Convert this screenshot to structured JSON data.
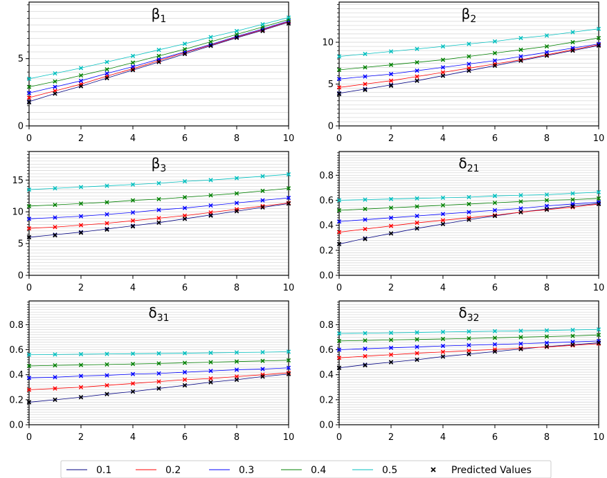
{
  "chart_data": {
    "type": "line",
    "x": [
      0,
      1,
      2,
      3,
      4,
      5,
      6,
      7,
      8,
      9,
      10
    ],
    "grid": "horizontal minor gridlines",
    "legend": {
      "placement": "bottom-center",
      "entries": [
        "0.1",
        "0.2",
        "0.3",
        "0.4",
        "0.5",
        "Predicted Values"
      ]
    },
    "colors": [
      "#000080",
      "#ff0000",
      "#0000ff",
      "#008000",
      "#00bfbf"
    ],
    "predicted_color": "#000000",
    "panels": [
      {
        "title_main": "β",
        "title_sub": "1",
        "xlim": [
          0,
          10
        ],
        "ylim": [
          0,
          9.2
        ],
        "yticks": [
          0,
          5
        ],
        "ytick_labels": [
          "0",
          "5"
        ],
        "xticks": [
          0,
          2,
          4,
          6,
          8,
          10
        ],
        "xtick_labels": [
          "0",
          "2",
          "4",
          "6",
          "8",
          "10"
        ],
        "series": [
          {
            "values": [
              1.8,
              2.4,
              2.95,
              3.55,
              4.15,
              4.75,
              5.35,
              5.95,
              6.55,
              7.1,
              7.7
            ]
          },
          {
            "values": [
              2.1,
              2.6,
              3.1,
              3.7,
              4.25,
              4.85,
              5.45,
              6.0,
              6.6,
              7.15,
              7.75
            ]
          },
          {
            "values": [
              2.45,
              2.9,
              3.35,
              3.9,
              4.4,
              4.95,
              5.5,
              6.05,
              6.65,
              7.2,
              7.8
            ]
          },
          {
            "values": [
              2.9,
              3.3,
              3.75,
              4.2,
              4.7,
              5.2,
              5.7,
              6.25,
              6.8,
              7.35,
              7.9
            ]
          },
          {
            "values": [
              3.5,
              3.9,
              4.3,
              4.75,
              5.2,
              5.65,
              6.1,
              6.6,
              7.05,
              7.55,
              8.05
            ]
          }
        ],
        "predicted": [
          1.75,
          2.4,
          2.95,
          3.55,
          4.15,
          4.75,
          5.35,
          5.95,
          6.55,
          7.05,
          7.6
        ]
      },
      {
        "title_main": "β",
        "title_sub": "2",
        "xlim": [
          0,
          10
        ],
        "ylim": [
          0,
          14.8
        ],
        "yticks": [
          0,
          5,
          10
        ],
        "ytick_labels": [
          "0",
          "5",
          "10"
        ],
        "xticks": [
          0,
          2,
          4,
          6,
          8,
          10
        ],
        "xtick_labels": [
          "0",
          "2",
          "4",
          "6",
          "8",
          "10"
        ],
        "series": [
          {
            "values": [
              3.9,
              4.4,
              4.9,
              5.4,
              6.0,
              6.6,
              7.2,
              7.8,
              8.4,
              9.0,
              9.6
            ]
          },
          {
            "values": [
              4.6,
              5.0,
              5.4,
              5.9,
              6.4,
              6.9,
              7.4,
              7.9,
              8.5,
              9.1,
              9.7
            ]
          },
          {
            "values": [
              5.6,
              5.9,
              6.2,
              6.6,
              7.0,
              7.4,
              7.8,
              8.3,
              8.8,
              9.3,
              9.8
            ]
          },
          {
            "values": [
              6.7,
              7.0,
              7.3,
              7.6,
              7.9,
              8.3,
              8.7,
              9.1,
              9.5,
              10.0,
              10.5
            ]
          },
          {
            "values": [
              8.3,
              8.6,
              8.9,
              9.2,
              9.5,
              9.8,
              10.1,
              10.5,
              10.8,
              11.2,
              11.6
            ]
          }
        ],
        "predicted": [
          3.8,
          4.3,
          4.8,
          5.4,
          6.0,
          6.6,
          7.2,
          7.8,
          8.4,
          9.0,
          9.6
        ]
      },
      {
        "title_main": "β",
        "title_sub": "3",
        "xlim": [
          0,
          10
        ],
        "ylim": [
          0,
          19.5
        ],
        "yticks": [
          0,
          5,
          10,
          15
        ],
        "ytick_labels": [
          "0",
          "5",
          "10",
          "15"
        ],
        "xticks": [
          0,
          2,
          4,
          6,
          8,
          10
        ],
        "xtick_labels": [
          "0",
          "2",
          "4",
          "6",
          "8",
          "10"
        ],
        "series": [
          {
            "values": [
              6.0,
              6.4,
              6.8,
              7.3,
              7.8,
              8.3,
              8.9,
              9.5,
              10.1,
              10.7,
              11.3
            ]
          },
          {
            "values": [
              7.4,
              7.6,
              7.9,
              8.2,
              8.6,
              9.0,
              9.4,
              9.9,
              10.4,
              10.9,
              11.4
            ]
          },
          {
            "values": [
              8.9,
              9.1,
              9.3,
              9.6,
              9.9,
              10.3,
              10.6,
              11.0,
              11.4,
              11.8,
              12.2
            ]
          },
          {
            "values": [
              10.9,
              11.1,
              11.3,
              11.5,
              11.8,
              12.0,
              12.3,
              12.6,
              12.9,
              13.3,
              13.7
            ]
          },
          {
            "values": [
              13.5,
              13.7,
              13.9,
              14.1,
              14.3,
              14.5,
              14.8,
              15.0,
              15.3,
              15.6,
              15.9
            ]
          }
        ],
        "predicted": [
          6.0,
          6.3,
          6.7,
          7.2,
          7.7,
          8.3,
          8.9,
          9.4,
          10.1,
          10.7,
          11.3
        ]
      },
      {
        "title_main": "δ",
        "title_sub": "21",
        "xlim": [
          0,
          10
        ],
        "ylim": [
          0,
          0.99
        ],
        "yticks": [
          0,
          0.2,
          0.4,
          0.6,
          0.8
        ],
        "ytick_labels": [
          "0.0",
          "0.2",
          "0.4",
          "0.6",
          "0.8"
        ],
        "xticks": [
          0,
          2,
          4,
          6,
          8,
          10
        ],
        "xtick_labels": [
          "0",
          "2",
          "4",
          "6",
          "8",
          "10"
        ],
        "series": [
          {
            "values": [
              0.25,
              0.295,
              0.335,
              0.375,
              0.41,
              0.445,
              0.475,
              0.505,
              0.53,
              0.555,
              0.575
            ]
          },
          {
            "values": [
              0.345,
              0.37,
              0.395,
              0.42,
              0.44,
              0.46,
              0.48,
              0.505,
              0.525,
              0.545,
              0.57
            ]
          },
          {
            "values": [
              0.43,
              0.445,
              0.46,
              0.475,
              0.49,
              0.505,
              0.52,
              0.535,
              0.555,
              0.57,
              0.585
            ]
          },
          {
            "values": [
              0.52,
              0.53,
              0.54,
              0.55,
              0.56,
              0.57,
              0.58,
              0.59,
              0.6,
              0.605,
              0.615
            ]
          },
          {
            "values": [
              0.6,
              0.605,
              0.61,
              0.615,
              0.62,
              0.625,
              0.635,
              0.64,
              0.645,
              0.655,
              0.665
            ]
          }
        ],
        "predicted": [
          0.25,
          0.29,
          0.335,
          0.375,
          0.41,
          0.445,
          0.475,
          0.505,
          0.525,
          0.55,
          0.57
        ]
      },
      {
        "title_main": "δ",
        "title_sub": "31",
        "xlim": [
          0,
          10
        ],
        "ylim": [
          0,
          0.99
        ],
        "yticks": [
          0,
          0.2,
          0.4,
          0.6,
          0.8
        ],
        "ytick_labels": [
          "0.0",
          "0.2",
          "0.4",
          "0.6",
          "0.8"
        ],
        "xticks": [
          0,
          2,
          4,
          6,
          8,
          10
        ],
        "xtick_labels": [
          "0",
          "2",
          "4",
          "6",
          "8",
          "10"
        ],
        "series": [
          {
            "values": [
              0.18,
              0.2,
              0.22,
              0.245,
              0.265,
              0.29,
              0.315,
              0.34,
              0.36,
              0.385,
              0.405
            ]
          },
          {
            "values": [
              0.28,
              0.29,
              0.3,
              0.315,
              0.33,
              0.345,
              0.36,
              0.37,
              0.385,
              0.4,
              0.415
            ]
          },
          {
            "values": [
              0.375,
              0.38,
              0.39,
              0.395,
              0.405,
              0.41,
              0.42,
              0.43,
              0.44,
              0.445,
              0.455
            ]
          },
          {
            "values": [
              0.47,
              0.475,
              0.478,
              0.482,
              0.486,
              0.49,
              0.495,
              0.5,
              0.505,
              0.51,
              0.515
            ]
          },
          {
            "values": [
              0.56,
              0.562,
              0.564,
              0.566,
              0.568,
              0.57,
              0.572,
              0.575,
              0.578,
              0.58,
              0.584
            ]
          }
        ],
        "predicted": [
          0.18,
          0.2,
          0.22,
          0.245,
          0.265,
          0.29,
          0.315,
          0.34,
          0.36,
          0.385,
          0.405
        ]
      },
      {
        "title_main": "δ",
        "title_sub": "32",
        "xlim": [
          0,
          10
        ],
        "ylim": [
          0,
          0.99
        ],
        "yticks": [
          0,
          0.2,
          0.4,
          0.6,
          0.8
        ],
        "ytick_labels": [
          "0.0",
          "0.2",
          "0.4",
          "0.6",
          "0.8"
        ],
        "xticks": [
          0,
          2,
          4,
          6,
          8,
          10
        ],
        "xtick_labels": [
          "0",
          "2",
          "4",
          "6",
          "8",
          "10"
        ],
        "series": [
          {
            "values": [
              0.455,
              0.48,
              0.5,
              0.52,
              0.545,
              0.565,
              0.585,
              0.605,
              0.625,
              0.64,
              0.655
            ]
          },
          {
            "values": [
              0.535,
              0.548,
              0.56,
              0.572,
              0.582,
              0.592,
              0.602,
              0.612,
              0.622,
              0.635,
              0.648
            ]
          },
          {
            "values": [
              0.6,
              0.608,
              0.615,
              0.622,
              0.63,
              0.636,
              0.642,
              0.648,
              0.655,
              0.662,
              0.67
            ]
          },
          {
            "values": [
              0.67,
              0.674,
              0.678,
              0.682,
              0.686,
              0.69,
              0.695,
              0.7,
              0.705,
              0.71,
              0.718
            ]
          },
          {
            "values": [
              0.73,
              0.732,
              0.735,
              0.738,
              0.742,
              0.745,
              0.748,
              0.751,
              0.754,
              0.758,
              0.762
            ]
          }
        ],
        "predicted": [
          0.455,
          0.475,
          0.5,
          0.52,
          0.545,
          0.565,
          0.585,
          0.605,
          0.625,
          0.64,
          0.655
        ]
      }
    ]
  }
}
